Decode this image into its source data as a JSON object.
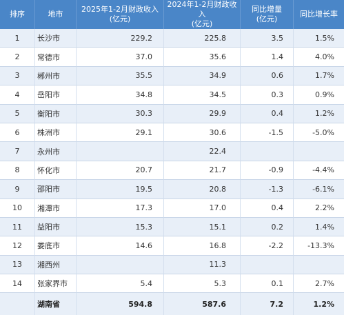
{
  "table": {
    "headers": [
      "排序",
      "地市",
      "2025年1-2月财政收入\n(亿元)",
      "2024年1-2月财政收入\n(亿元)",
      "同比增量\n(亿元)",
      "同比增长率"
    ],
    "rows": [
      {
        "rank": "1",
        "city": "长沙市",
        "rev2025": "229.2",
        "rev2024": "225.8",
        "increase": "3.5",
        "rate": "1.5%"
      },
      {
        "rank": "2",
        "city": "常德市",
        "rev2025": "37.0",
        "rev2024": "35.6",
        "increase": "1.4",
        "rate": "4.0%"
      },
      {
        "rank": "3",
        "city": "郴州市",
        "rev2025": "35.5",
        "rev2024": "34.9",
        "increase": "0.6",
        "rate": "1.7%"
      },
      {
        "rank": "4",
        "city": "岳阳市",
        "rev2025": "34.8",
        "rev2024": "34.5",
        "increase": "0.3",
        "rate": "0.9%"
      },
      {
        "rank": "5",
        "city": "衡阳市",
        "rev2025": "30.3",
        "rev2024": "29.9",
        "increase": "0.4",
        "rate": "1.2%"
      },
      {
        "rank": "6",
        "city": "株洲市",
        "rev2025": "29.1",
        "rev2024": "30.6",
        "increase": "-1.5",
        "rate": "-5.0%"
      },
      {
        "rank": "7",
        "city": "永州市",
        "rev2025": "",
        "rev2024": "22.4",
        "increase": "",
        "rate": ""
      },
      {
        "rank": "8",
        "city": "怀化市",
        "rev2025": "20.7",
        "rev2024": "21.7",
        "increase": "-0.9",
        "rate": "-4.4%"
      },
      {
        "rank": "9",
        "city": "邵阳市",
        "rev2025": "19.5",
        "rev2024": "20.8",
        "increase": "-1.3",
        "rate": "-6.1%"
      },
      {
        "rank": "10",
        "city": "湘潭市",
        "rev2025": "17.3",
        "rev2024": "17.0",
        "increase": "0.4",
        "rate": "2.2%"
      },
      {
        "rank": "11",
        "city": "益阳市",
        "rev2025": "15.3",
        "rev2024": "15.1",
        "increase": "0.2",
        "rate": "1.4%"
      },
      {
        "rank": "12",
        "city": "娄底市",
        "rev2025": "14.6",
        "rev2024": "16.8",
        "increase": "-2.2",
        "rate": "-13.3%"
      },
      {
        "rank": "13",
        "city": "湘西州",
        "rev2025": "",
        "rev2024": "11.3",
        "increase": "",
        "rate": ""
      },
      {
        "rank": "14",
        "city": "张家界市",
        "rev2025": "5.4",
        "rev2024": "5.3",
        "increase": "0.1",
        "rate": "2.7%"
      }
    ],
    "total": {
      "rank": "",
      "city": "湖南省",
      "rev2025": "594.8",
      "rev2024": "587.6",
      "increase": "7.2",
      "rate": "1.2%"
    }
  },
  "colors": {
    "header_bg": "#4a86c8",
    "header_text": "#ffffff",
    "stripe_bg": "#e8eff8",
    "body_text": "#333333"
  }
}
